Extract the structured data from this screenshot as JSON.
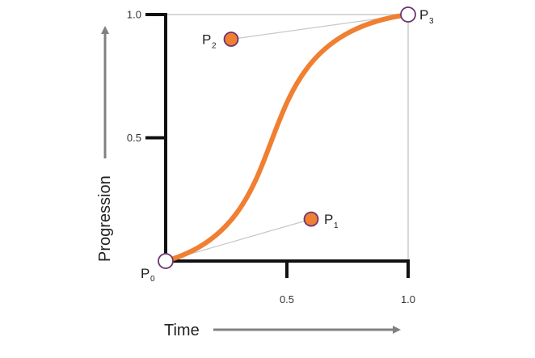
{
  "colors": {
    "curve": "#f07f32",
    "control_fill": "#f07f32",
    "point_outline": "#6b3570",
    "endpoint_fill": "#ffffff",
    "axis": "#111111",
    "guide": "#cccccc",
    "control_line": "#c8c8c8",
    "arrow": "#808080"
  },
  "chart_data": {
    "type": "line",
    "title": "",
    "xlabel": "Time",
    "ylabel": "Progression",
    "xlim": [
      0,
      1
    ],
    "ylim": [
      0,
      1
    ],
    "x_ticks": [
      {
        "value": 0.5,
        "label": "0.5"
      },
      {
        "value": 1.0,
        "label": "1.0"
      }
    ],
    "y_ticks": [
      {
        "value": 0.5,
        "label": "0.5"
      },
      {
        "value": 1.0,
        "label": "1.0"
      }
    ],
    "curve": "cubic-bezier",
    "points": [
      {
        "id": "p0",
        "label": "P",
        "sub": "0",
        "x": 0.0,
        "y": 0.0,
        "kind": "endpoint"
      },
      {
        "id": "p1",
        "label": "P",
        "sub": "1",
        "x": 0.6,
        "y": 0.17,
        "kind": "control"
      },
      {
        "id": "p2",
        "label": "P",
        "sub": "2",
        "x": 0.27,
        "y": 0.9,
        "kind": "control"
      },
      {
        "id": "p3",
        "label": "P",
        "sub": "3",
        "x": 1.0,
        "y": 1.0,
        "kind": "endpoint"
      }
    ]
  }
}
